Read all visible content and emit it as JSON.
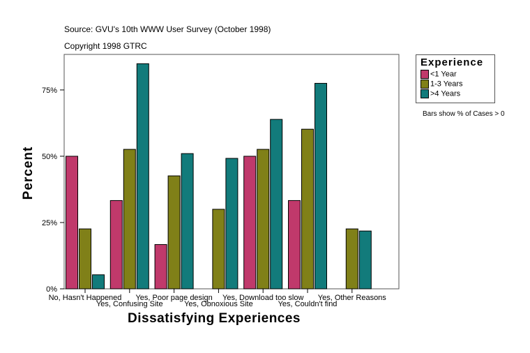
{
  "header": {
    "source": "Source: GVU's 10th WWW User Survey (October 1998)",
    "copyright": "Copyright 1998 GTRC"
  },
  "note": "Bars show % of Cases > 0",
  "chart_data": {
    "type": "bar",
    "title": "",
    "xlabel": "Dissatisfying Experiences",
    "ylabel": "Percent",
    "ylim": [
      0,
      88.4
    ],
    "yticks": [
      0,
      25,
      50,
      75
    ],
    "ytick_labels": [
      "0%",
      "25%",
      "50%",
      "75%"
    ],
    "grid": false,
    "legend": {
      "title": "Experience",
      "placement": "right"
    },
    "categories": [
      "No, Hasn't Happened",
      "Yes, Confusing Site",
      "Yes, Poor page design",
      "Yes, Obnoxious Site",
      "Yes, Download too slow",
      "Yes, Couldn't find",
      "Yes, Other Reasons"
    ],
    "series": [
      {
        "name": "<1 Year",
        "color": "#c0396b",
        "values": [
          50,
          33.3,
          16.7,
          0,
          50,
          33.3,
          0
        ]
      },
      {
        "name": "1-3 Years",
        "color": "#808018",
        "values": [
          22.6,
          52.6,
          42.6,
          30.0,
          52.6,
          60.2,
          22.6
        ]
      },
      {
        "name": ">4 Years",
        "color": "#127b7b",
        "values": [
          5.3,
          84.9,
          51.0,
          49.2,
          63.9,
          77.5,
          21.8
        ]
      }
    ]
  }
}
